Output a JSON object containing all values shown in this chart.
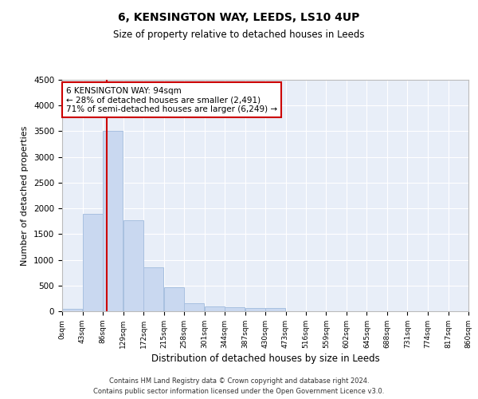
{
  "title": "6, KENSINGTON WAY, LEEDS, LS10 4UP",
  "subtitle": "Size of property relative to detached houses in Leeds",
  "xlabel": "Distribution of detached houses by size in Leeds",
  "ylabel": "Number of detached properties",
  "bar_color": "#c9d8f0",
  "bar_edgecolor": "#a8c0e0",
  "background_color": "#e8eef8",
  "grid_color": "#ffffff",
  "annotation_line_color": "#cc0000",
  "annotation_box_edgecolor": "#cc0000",
  "annotation_text_line1": "6 KENSINGTON WAY: 94sqm",
  "annotation_text_line2": "← 28% of detached houses are smaller (2,491)",
  "annotation_text_line3": "71% of semi-detached houses are larger (6,249) →",
  "property_sqm": 94,
  "bin_edges": [
    0,
    43,
    86,
    129,
    172,
    215,
    258,
    301,
    344,
    387,
    430,
    473,
    516,
    559,
    602,
    645,
    688,
    731,
    774,
    817,
    860
  ],
  "bin_labels": [
    "0sqm",
    "43sqm",
    "86sqm",
    "129sqm",
    "172sqm",
    "215sqm",
    "258sqm",
    "301sqm",
    "344sqm",
    "387sqm",
    "430sqm",
    "473sqm",
    "516sqm",
    "559sqm",
    "602sqm",
    "645sqm",
    "688sqm",
    "731sqm",
    "774sqm",
    "817sqm",
    "860sqm"
  ],
  "bar_heights": [
    50,
    1900,
    3500,
    1775,
    850,
    460,
    155,
    100,
    75,
    55,
    55,
    0,
    0,
    0,
    0,
    0,
    0,
    0,
    0,
    0
  ],
  "ylim": [
    0,
    4500
  ],
  "yticks": [
    0,
    500,
    1000,
    1500,
    2000,
    2500,
    3000,
    3500,
    4000,
    4500
  ],
  "footer_line1": "Contains HM Land Registry data © Crown copyright and database right 2024.",
  "footer_line2": "Contains public sector information licensed under the Open Government Licence v3.0."
}
